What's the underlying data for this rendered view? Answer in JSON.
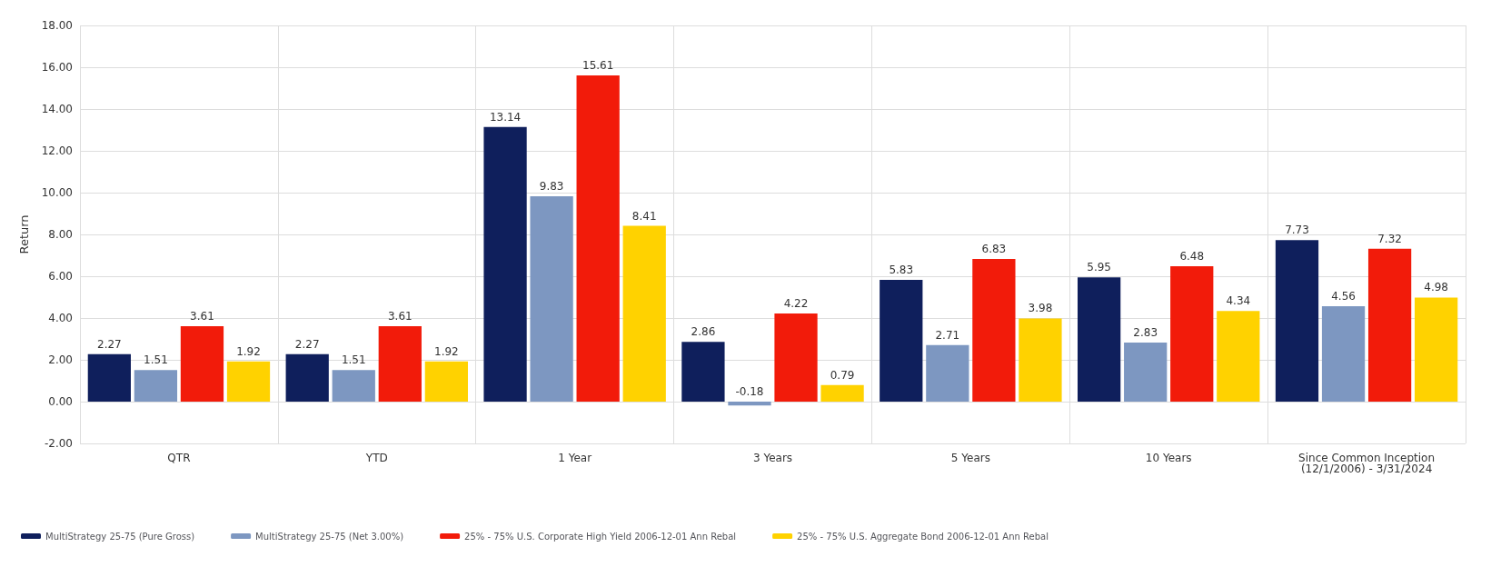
{
  "chart_data": {
    "type": "bar",
    "ylabel": "Return",
    "categories": [
      "QTR",
      "YTD",
      "1 Year",
      "3 Years",
      "5 Years",
      "10 Years",
      "Since Common Inception\n(12/1/2006) - 3/31/2024"
    ],
    "series": [
      {
        "name": "MultiStrategy 25-75 (Pure Gross)",
        "color": "#0f1f5c",
        "values": [
          2.27,
          2.27,
          13.14,
          2.86,
          5.83,
          5.95,
          7.73
        ]
      },
      {
        "name": "MultiStrategy 25-75 (Net 3.00%)",
        "color": "#7d97c1",
        "values": [
          1.51,
          1.51,
          9.83,
          -0.18,
          2.71,
          2.83,
          4.56
        ]
      },
      {
        "name": "25% - 75% U.S. Corporate High Yield 2006-12-01 Ann Rebal",
        "color": "#f21b0a",
        "values": [
          3.61,
          3.61,
          15.61,
          4.22,
          6.83,
          6.48,
          7.32
        ]
      },
      {
        "name": "25% - 75% U.S. Aggregate Bond 2006-12-01 Ann Rebal",
        "color": "#ffd200",
        "values": [
          1.92,
          1.92,
          8.41,
          0.79,
          3.98,
          4.34,
          4.98
        ]
      }
    ],
    "ylim": [
      -2,
      18
    ],
    "yticks": [
      {
        "value": -2,
        "label": "-2.00"
      },
      {
        "value": 0,
        "label": "0.00"
      },
      {
        "value": 2,
        "label": "2.00"
      },
      {
        "value": 4,
        "label": "4.00"
      },
      {
        "value": 6,
        "label": "6.00"
      },
      {
        "value": 8,
        "label": "8.00"
      },
      {
        "value": 10,
        "label": "10.00"
      },
      {
        "value": 12,
        "label": "12.00"
      },
      {
        "value": 14,
        "label": "14.00"
      },
      {
        "value": 16,
        "label": "16.00"
      },
      {
        "value": 18,
        "label": "18.00"
      }
    ],
    "grid": true,
    "legend": "bottom",
    "data_labels": true
  }
}
